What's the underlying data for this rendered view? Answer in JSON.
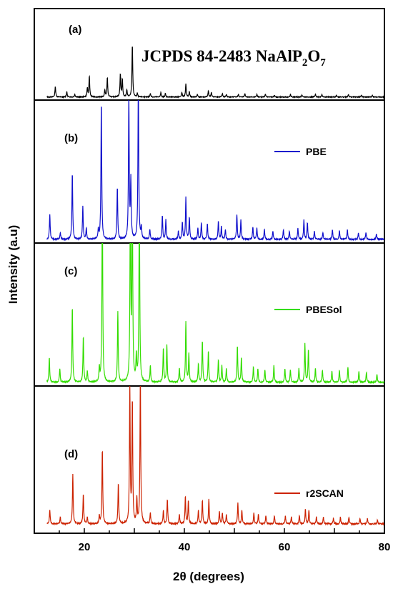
{
  "chart_data": {
    "type": "line",
    "title": "",
    "xlabel": "2θ (degrees)",
    "ylabel": "Intensity (a.u)",
    "xlim": [
      10,
      80
    ],
    "xticks": [
      "20",
      "40",
      "60",
      "80"
    ],
    "xtick_values": [
      20,
      40,
      60,
      80
    ],
    "grid": false,
    "panels": [
      {
        "label": "(a)",
        "legend": "",
        "annotation": {
          "prefix": "JCPDS 84-2483 NaAlP",
          "sub1": "2",
          "mid": "O",
          "sub2": "7"
        },
        "color": "#000000",
        "ylim": [
          0,
          100
        ],
        "peaks": [
          [
            14.2,
            12
          ],
          [
            16.5,
            6
          ],
          [
            18.1,
            3
          ],
          [
            20.6,
            10
          ],
          [
            21.0,
            24
          ],
          [
            24.1,
            8
          ],
          [
            24.6,
            22
          ],
          [
            27.2,
            26
          ],
          [
            27.6,
            20
          ],
          [
            28.5,
            8
          ],
          [
            29.6,
            60
          ],
          [
            30.6,
            4
          ],
          [
            33.2,
            4
          ],
          [
            35.3,
            5
          ],
          [
            36.2,
            4
          ],
          [
            39.5,
            5
          ],
          [
            40.3,
            15
          ],
          [
            41.0,
            6
          ],
          [
            42.6,
            3
          ],
          [
            44.8,
            7
          ],
          [
            45.4,
            5
          ],
          [
            47.6,
            4
          ],
          [
            48.4,
            3
          ],
          [
            50.8,
            3
          ],
          [
            52.1,
            4
          ],
          [
            54.5,
            3
          ],
          [
            56.2,
            3
          ],
          [
            58.0,
            2
          ],
          [
            61.2,
            3
          ],
          [
            63.5,
            2
          ],
          [
            66.2,
            3
          ],
          [
            67.5,
            3
          ],
          [
            70.4,
            2
          ],
          [
            72.8,
            3
          ],
          [
            75.4,
            2
          ],
          [
            77.6,
            2
          ]
        ]
      },
      {
        "label": "(b)",
        "legend": "PBE",
        "color": "#1010cc",
        "ylim": [
          0,
          100
        ],
        "peaks": [
          [
            13.1,
            18
          ],
          [
            15.2,
            5
          ],
          [
            17.6,
            48
          ],
          [
            19.7,
            24
          ],
          [
            20.4,
            8
          ],
          [
            22.8,
            7
          ],
          [
            23.4,
            100
          ],
          [
            26.6,
            38
          ],
          [
            28.9,
            104
          ],
          [
            29.3,
            42
          ],
          [
            30.8,
            118
          ],
          [
            31.4,
            8
          ],
          [
            33.1,
            7
          ],
          [
            35.6,
            17
          ],
          [
            36.3,
            14
          ],
          [
            38.8,
            6
          ],
          [
            39.6,
            12
          ],
          [
            40.3,
            30
          ],
          [
            41.0,
            16
          ],
          [
            42.7,
            8
          ],
          [
            43.4,
            12
          ],
          [
            44.6,
            11
          ],
          [
            46.8,
            13
          ],
          [
            47.4,
            9
          ],
          [
            48.2,
            7
          ],
          [
            50.5,
            18
          ],
          [
            51.3,
            14
          ],
          [
            53.7,
            9
          ],
          [
            54.5,
            8
          ],
          [
            56.0,
            7
          ],
          [
            57.7,
            6
          ],
          [
            59.8,
            7
          ],
          [
            61.0,
            6
          ],
          [
            62.7,
            8
          ],
          [
            63.9,
            14
          ],
          [
            64.6,
            12
          ],
          [
            66.0,
            6
          ],
          [
            67.7,
            5
          ],
          [
            69.6,
            7
          ],
          [
            71.0,
            6
          ],
          [
            72.6,
            7
          ],
          [
            74.8,
            5
          ],
          [
            76.3,
            5
          ],
          [
            78.4,
            4
          ]
        ]
      },
      {
        "label": "(c)",
        "legend": "PBESol",
        "color": "#33dd00",
        "ylim": [
          0,
          100
        ],
        "peaks": [
          [
            13.0,
            18
          ],
          [
            15.1,
            10
          ],
          [
            17.6,
            55
          ],
          [
            19.8,
            33
          ],
          [
            20.6,
            8
          ],
          [
            23.0,
            10
          ],
          [
            23.6,
            140
          ],
          [
            26.7,
            51
          ],
          [
            29.2,
            140
          ],
          [
            29.6,
            140
          ],
          [
            30.4,
            18
          ],
          [
            31.0,
            140
          ],
          [
            33.2,
            12
          ],
          [
            35.8,
            25
          ],
          [
            36.5,
            27
          ],
          [
            39.0,
            10
          ],
          [
            40.3,
            44
          ],
          [
            40.9,
            20
          ],
          [
            42.8,
            13
          ],
          [
            43.6,
            30
          ],
          [
            44.8,
            23
          ],
          [
            46.8,
            16
          ],
          [
            47.5,
            12
          ],
          [
            48.4,
            10
          ],
          [
            50.6,
            26
          ],
          [
            51.4,
            18
          ],
          [
            53.8,
            11
          ],
          [
            54.7,
            10
          ],
          [
            56.1,
            9
          ],
          [
            57.9,
            12
          ],
          [
            60.1,
            10
          ],
          [
            61.2,
            9
          ],
          [
            62.9,
            10
          ],
          [
            64.1,
            28
          ],
          [
            64.8,
            24
          ],
          [
            66.2,
            10
          ],
          [
            67.6,
            9
          ],
          [
            69.5,
            8
          ],
          [
            71.0,
            9
          ],
          [
            72.7,
            11
          ],
          [
            74.9,
            8
          ],
          [
            76.4,
            7
          ],
          [
            78.5,
            6
          ]
        ]
      },
      {
        "label": "(d)",
        "legend": "r2SCAN",
        "color": "#cc2200",
        "ylim": [
          0,
          100
        ],
        "peaks": [
          [
            13.1,
            10
          ],
          [
            15.2,
            5
          ],
          [
            17.7,
            36
          ],
          [
            19.8,
            22
          ],
          [
            20.6,
            5
          ],
          [
            23.0,
            6
          ],
          [
            23.6,
            55
          ],
          [
            26.8,
            30
          ],
          [
            29.1,
            99
          ],
          [
            29.6,
            90
          ],
          [
            30.5,
            18
          ],
          [
            31.2,
            108
          ],
          [
            33.2,
            8
          ],
          [
            35.8,
            10
          ],
          [
            36.6,
            18
          ],
          [
            39.0,
            7
          ],
          [
            40.2,
            20
          ],
          [
            40.8,
            17
          ],
          [
            42.8,
            10
          ],
          [
            43.6,
            17
          ],
          [
            44.9,
            18
          ],
          [
            47.0,
            9
          ],
          [
            47.6,
            8
          ],
          [
            48.4,
            7
          ],
          [
            50.7,
            15
          ],
          [
            51.5,
            10
          ],
          [
            53.9,
            8
          ],
          [
            54.8,
            7
          ],
          [
            56.3,
            6
          ],
          [
            58.0,
            6
          ],
          [
            60.2,
            6
          ],
          [
            61.4,
            5
          ],
          [
            63.0,
            6
          ],
          [
            64.2,
            11
          ],
          [
            64.9,
            10
          ],
          [
            66.4,
            5
          ],
          [
            67.8,
            5
          ],
          [
            69.8,
            4
          ],
          [
            71.2,
            5
          ],
          [
            72.9,
            5
          ],
          [
            75.1,
            4
          ],
          [
            76.6,
            4
          ],
          [
            78.6,
            3
          ]
        ]
      }
    ]
  }
}
